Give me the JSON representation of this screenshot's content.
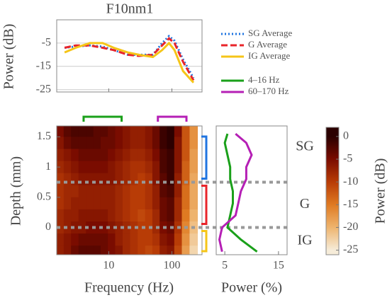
{
  "chart_data": [
    {
      "type": "line",
      "title": "F10nm1",
      "ylabel": "Power (dB)",
      "xscale": "log",
      "xlim": [
        1.5,
        300
      ],
      "ylim": [
        -26,
        5
      ],
      "yticks": [
        -5,
        -15,
        -25
      ],
      "grid": true,
      "x": [
        2,
        3,
        5,
        8,
        12,
        20,
        30,
        50,
        70,
        90,
        110,
        150,
        220
      ],
      "series": [
        {
          "name": "SG Average",
          "color": "#1f74e0",
          "dash": "dotted",
          "values": [
            -7,
            -6.5,
            -6,
            -6.5,
            -8,
            -10,
            -10,
            -10,
            -5,
            -2,
            -4,
            -12,
            -20
          ]
        },
        {
          "name": "G Average",
          "color": "#e8242a",
          "dash": "dashed",
          "values": [
            -7,
            -6,
            -6,
            -7,
            -8,
            -10,
            -10.5,
            -10,
            -6,
            -3,
            -5,
            -13,
            -21
          ]
        },
        {
          "name": "IG Average",
          "color": "#f5c518",
          "dash": "solid",
          "values": [
            -9,
            -7,
            -5,
            -5,
            -7,
            -9,
            -10,
            -11,
            -8,
            -5,
            -8,
            -17,
            -22
          ]
        }
      ]
    },
    {
      "type": "heatmap",
      "xlabel": "Frequency (Hz)",
      "ylabel": "Depth (mm)",
      "xscale": "log",
      "xlim": [
        1.5,
        300
      ],
      "ylim": [
        -0.45,
        1.68
      ],
      "xticks": [
        10,
        100
      ],
      "yticks": [
        1.5,
        1,
        0.5,
        0
      ],
      "boundaries": [
        0.75,
        0
      ],
      "x": [
        1.7,
        2.2,
        2.9,
        3.8,
        5,
        6.5,
        8.5,
        11,
        14.5,
        19,
        25,
        33,
        43,
        56,
        73,
        95,
        125,
        165,
        220
      ],
      "y": [
        1.6,
        1.4,
        1.2,
        1.0,
        0.8,
        0.6,
        0.4,
        0.2,
        0.0,
        -0.2,
        -0.4
      ],
      "values": [
        [
          -5,
          -3,
          -2,
          -2,
          -2,
          -3,
          -3,
          -4,
          -5,
          -6,
          -7,
          -7,
          -6,
          -4,
          -1,
          0,
          -5,
          -12,
          -17
        ],
        [
          -6,
          -4,
          -3,
          -3,
          -3,
          -3,
          -4,
          -4,
          -5,
          -6,
          -7,
          -7,
          -6,
          -4,
          -1,
          0,
          -6,
          -12,
          -17
        ],
        [
          -7,
          -6,
          -5,
          -4,
          -4,
          -4,
          -4,
          -5,
          -6,
          -7,
          -8,
          -8,
          -7,
          -5,
          -2,
          -1,
          -6,
          -12,
          -18
        ],
        [
          -8,
          -7,
          -6,
          -5,
          -5,
          -5,
          -5,
          -6,
          -7,
          -8,
          -9,
          -9,
          -8,
          -6,
          -2,
          -1,
          -6,
          -13,
          -18
        ],
        [
          -9,
          -8,
          -7,
          -6,
          -6,
          -6,
          -6,
          -6,
          -7,
          -8,
          -9,
          -10,
          -9,
          -6,
          -3,
          -1,
          -7,
          -13,
          -19
        ],
        [
          -9,
          -8,
          -8,
          -7,
          -7,
          -7,
          -7,
          -7,
          -8,
          -9,
          -10,
          -10,
          -9,
          -7,
          -3,
          -2,
          -7,
          -14,
          -19
        ],
        [
          -9,
          -8,
          -7,
          -7,
          -7,
          -7,
          -7,
          -7,
          -8,
          -9,
          -10,
          -10,
          -9,
          -7,
          -4,
          -3,
          -8,
          -14,
          -19
        ],
        [
          -8,
          -7,
          -7,
          -6,
          -6,
          -6,
          -6,
          -7,
          -8,
          -9,
          -10,
          -11,
          -10,
          -8,
          -4,
          -3,
          -8,
          -15,
          -20
        ],
        [
          -8,
          -7,
          -6,
          -6,
          -5,
          -5,
          -5,
          -6,
          -7,
          -8,
          -9,
          -10,
          -10,
          -8,
          -5,
          -4,
          -9,
          -16,
          -21
        ],
        [
          -7,
          -6,
          -5,
          -4,
          -4,
          -4,
          -4,
          -5,
          -7,
          -8,
          -9,
          -10,
          -10,
          -9,
          -6,
          -5,
          -10,
          -17,
          -22
        ],
        [
          -7,
          -6,
          -4,
          -3,
          -3,
          -3,
          -4,
          -5,
          -6,
          -8,
          -9,
          -10,
          -11,
          -10,
          -7,
          -6,
          -11,
          -18,
          -23
        ]
      ]
    },
    {
      "type": "profile",
      "xlabel": "Power (%)",
      "xlim": [
        3.4,
        16.6
      ],
      "xticks": [
        5,
        15
      ],
      "ylim": [
        -0.45,
        1.68
      ],
      "layers": [
        "SG",
        "G",
        "IG"
      ],
      "y": [
        1.55,
        1.4,
        1.2,
        1.0,
        0.8,
        0.6,
        0.4,
        0.2,
        0.0,
        -0.2,
        -0.4
      ],
      "series": [
        {
          "name": "4–16 Hz",
          "color": "#1aa01a",
          "band": [
            4,
            16
          ],
          "values": [
            5.5,
            5,
            5.5,
            6,
            6,
            6.5,
            6.5,
            6,
            5.5,
            8,
            11
          ]
        },
        {
          "name": "60–170 Hz",
          "color": "#b51fb5",
          "band": [
            60,
            170
          ],
          "values": [
            7,
            9,
            10,
            9,
            9,
            8,
            7.5,
            7,
            4.5,
            4,
            4.5
          ]
        }
      ]
    },
    {
      "type": "colorbar",
      "label": "Power (dB)",
      "clim": [
        -26,
        2
      ],
      "ticks": [
        0,
        -5,
        -10,
        -15,
        -20,
        -25
      ],
      "colors": [
        "#2b0000",
        "#7a0c00",
        "#b83c06",
        "#df7a22",
        "#eeb46e",
        "#f6ecd9"
      ]
    }
  ]
}
